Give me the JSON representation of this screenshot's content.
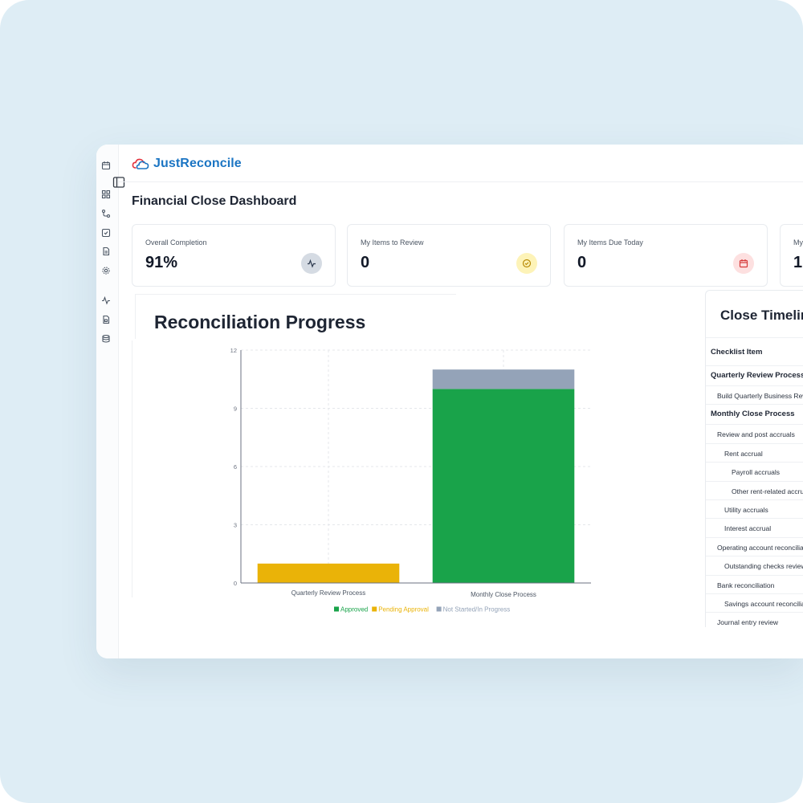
{
  "app": {
    "name": "JustReconcile",
    "brand_color": "#1b75c3"
  },
  "sidebar": {
    "items": [
      {
        "icon": "calendar-icon"
      },
      {
        "icon": "dashboard-grid-icon"
      },
      {
        "icon": "workflow-icon"
      },
      {
        "icon": "checkbox-icon"
      },
      {
        "icon": "document-icon"
      },
      {
        "icon": "gear-icon"
      },
      {
        "icon": "activity-icon"
      },
      {
        "icon": "report-icon"
      },
      {
        "icon": "database-icon"
      }
    ],
    "collapse_icon": "sidebar-toggle-icon"
  },
  "page": {
    "title": "Financial Close Dashboard"
  },
  "stats": [
    {
      "label": "Overall Completion",
      "value": "91%",
      "icon": "activity-icon",
      "icon_bg": "#d5dbe3"
    },
    {
      "label": "My Items to Review",
      "value": "0",
      "icon": "check-circle-icon",
      "icon_bg": "#fdf3b8"
    },
    {
      "label": "My Items Due Today",
      "value": "0",
      "icon": "calendar-icon",
      "icon_bg": "#fde0e0"
    },
    {
      "label": "My",
      "value": "1",
      "icon": "",
      "icon_bg": ""
    }
  ],
  "progress": {
    "title": "Reconciliation Progress"
  },
  "chart_data": {
    "type": "bar",
    "stacked": true,
    "categories": [
      "Quarterly Review Process",
      "Monthly Close Process"
    ],
    "series": [
      {
        "name": "Approved",
        "values": [
          0,
          10
        ],
        "color": "#19a34a"
      },
      {
        "name": "Pending Approval",
        "values": [
          1,
          0
        ],
        "color": "#eab308"
      },
      {
        "name": "Not Started/In Progress",
        "values": [
          0,
          1
        ],
        "color": "#94a3b8"
      }
    ],
    "yticks": [
      0,
      3,
      6,
      9,
      12
    ],
    "ylim": [
      0,
      12
    ],
    "grid": true,
    "legend_position": "bottom"
  },
  "timeline": {
    "title": "Close Timeline",
    "column_header": "Checklist Item",
    "rows": [
      {
        "label": "Quarterly Review Process",
        "level": 0,
        "group": true
      },
      {
        "label": "Build Quarterly Business Review",
        "level": 1,
        "group": false
      },
      {
        "label": "Monthly Close Process",
        "level": 0,
        "group": true
      },
      {
        "label": "Review and post accruals",
        "level": 1,
        "group": false
      },
      {
        "label": "Rent accrual",
        "level": 2,
        "group": false
      },
      {
        "label": "Payroll accruals",
        "level": 3,
        "group": false
      },
      {
        "label": "Other rent-related accruals",
        "level": 3,
        "group": false
      },
      {
        "label": "Utility accruals",
        "level": 2,
        "group": false
      },
      {
        "label": "Interest accrual",
        "level": 2,
        "group": false
      },
      {
        "label": "Operating account reconciliation",
        "level": 1,
        "group": false
      },
      {
        "label": "Outstanding checks review",
        "level": 2,
        "group": false
      },
      {
        "label": "Bank reconciliation",
        "level": 1,
        "group": false
      },
      {
        "label": "Savings account reconciliation",
        "level": 2,
        "group": false
      },
      {
        "label": "Journal entry review",
        "level": 1,
        "group": false
      }
    ]
  }
}
